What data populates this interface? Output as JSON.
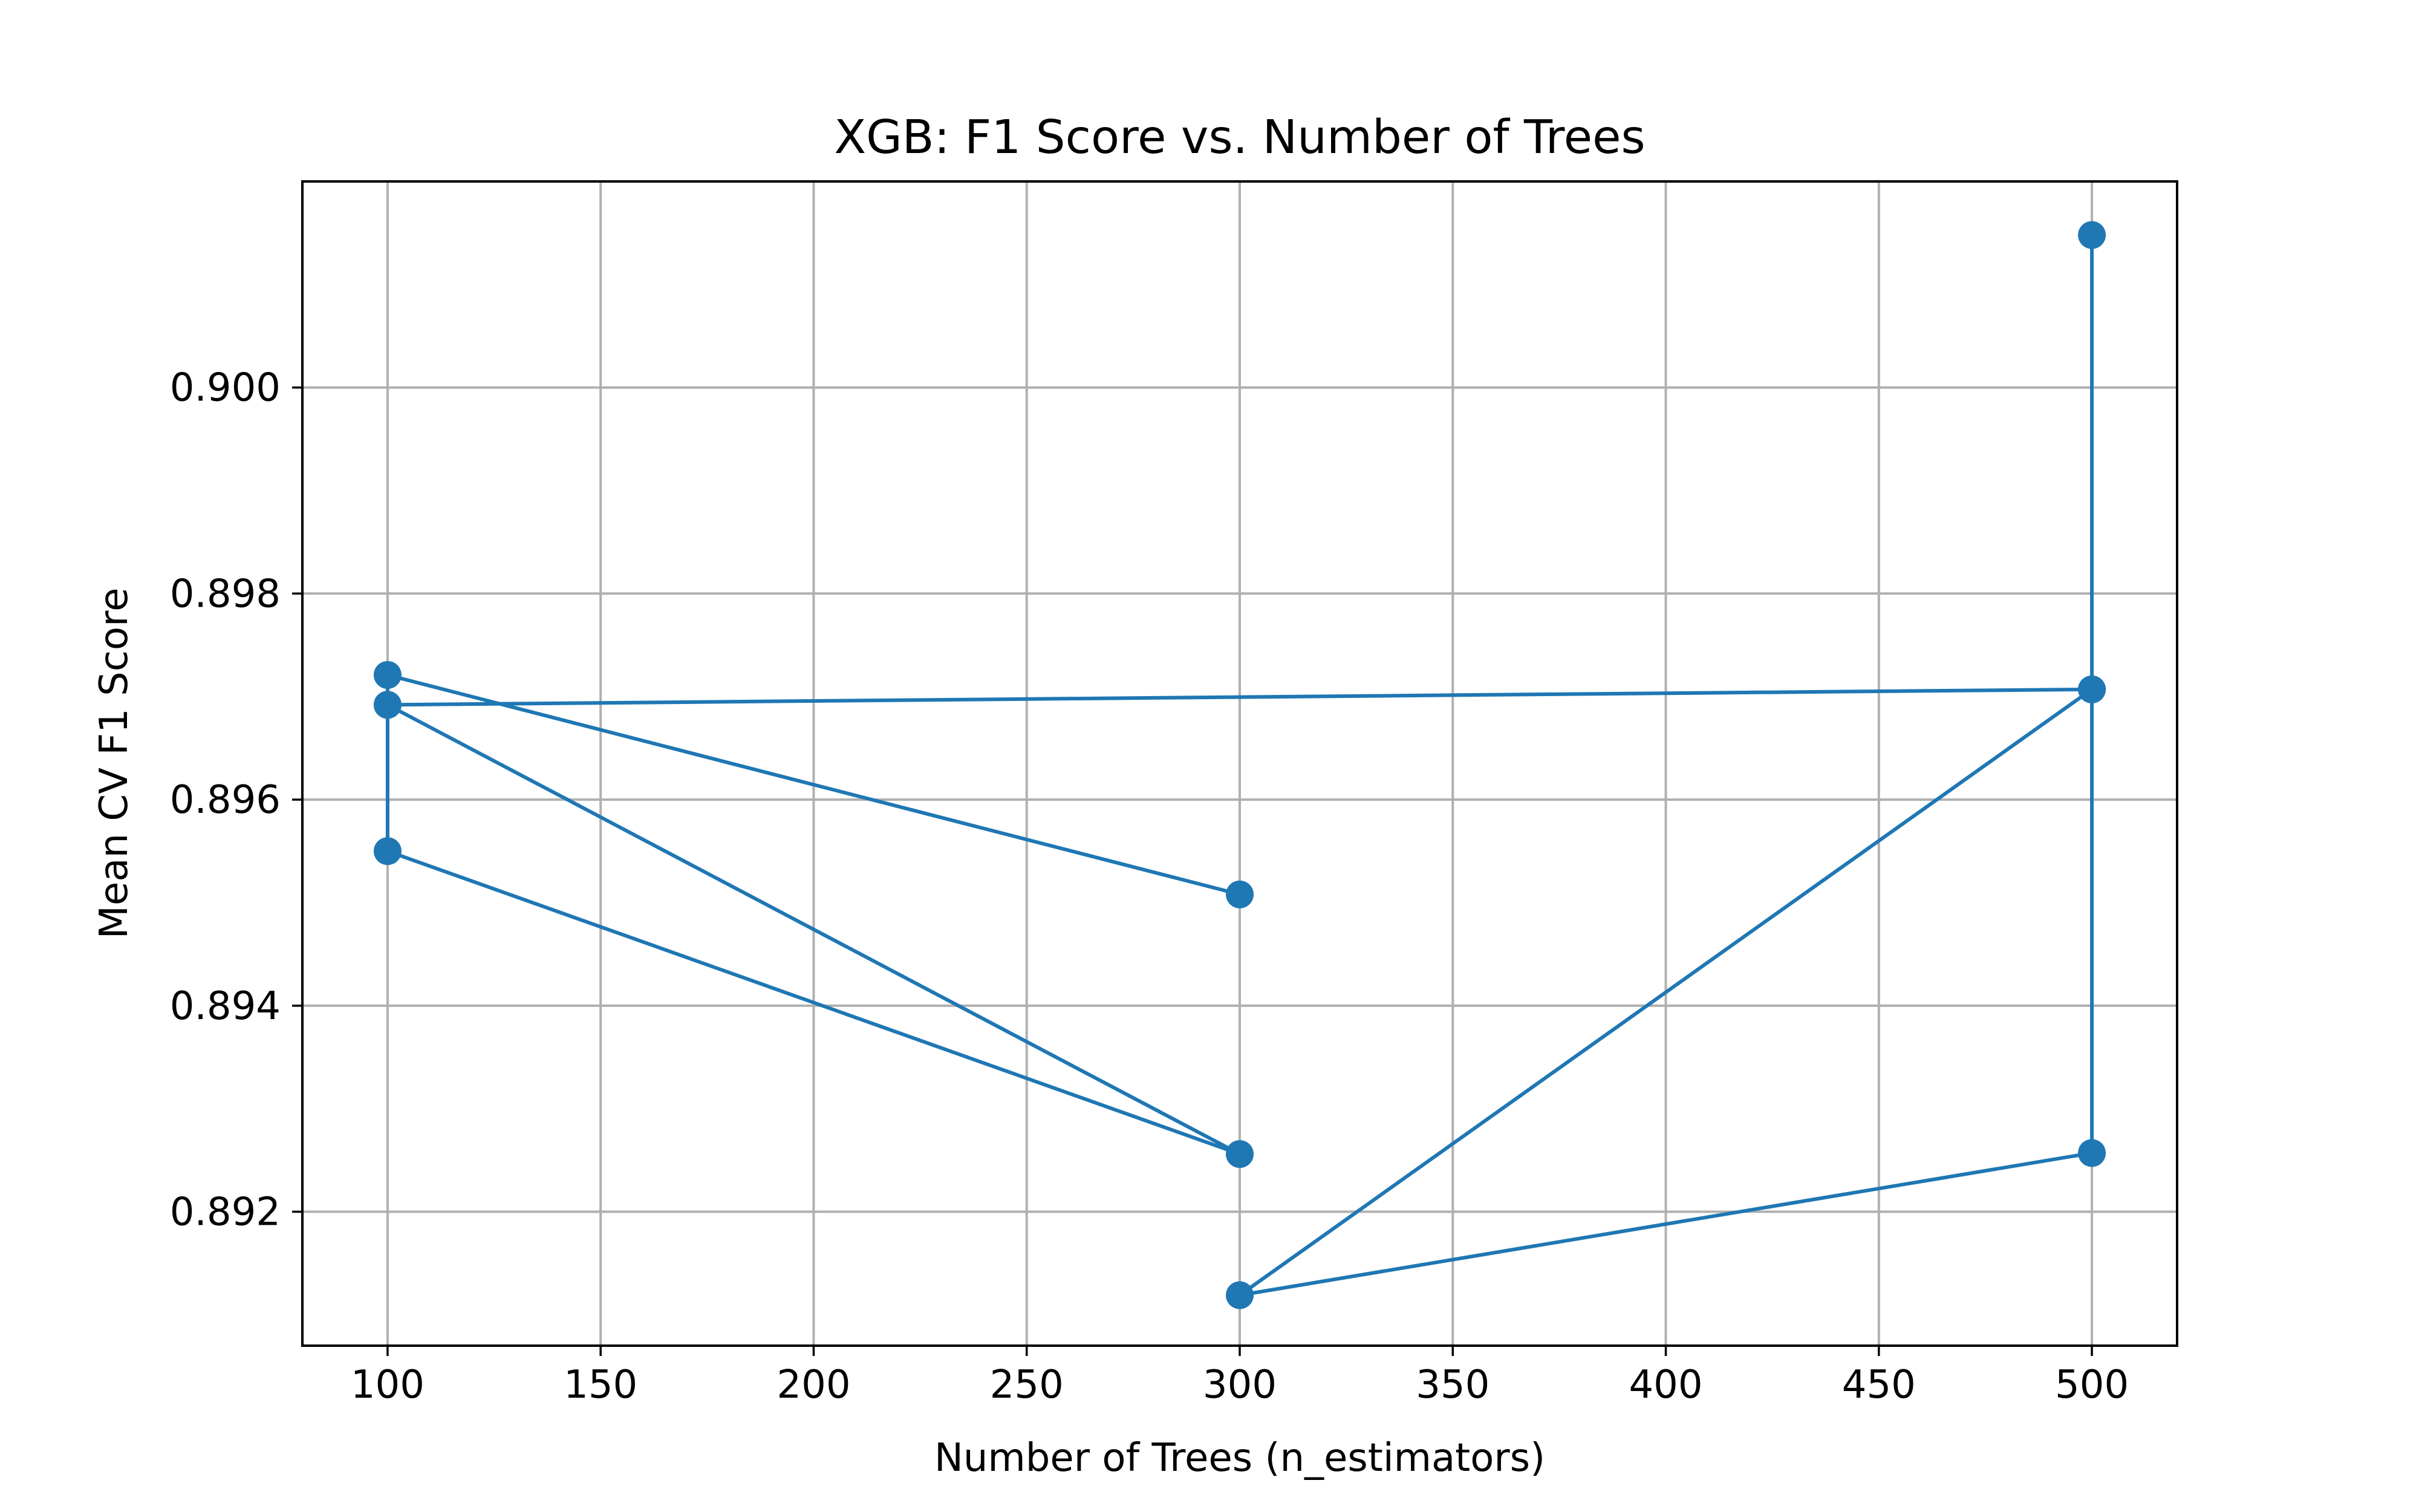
{
  "chart_data": {
    "type": "line",
    "title": "XGB: F1 Score vs. Number of Trees",
    "xlabel": "Number of Trees (n_estimators)",
    "ylabel": "Mean CV F1 Score",
    "xlim": [
      80,
      520
    ],
    "ylim": [
      0.8907,
      0.902
    ],
    "xticks": [
      100,
      150,
      200,
      250,
      300,
      350,
      400,
      450,
      500
    ],
    "xtick_labels": [
      "100",
      "150",
      "200",
      "250",
      "300",
      "350",
      "400",
      "450",
      "500"
    ],
    "yticks": [
      0.892,
      0.894,
      0.896,
      0.898,
      0.9
    ],
    "ytick_labels": [
      "0.892",
      "0.894",
      "0.896",
      "0.898",
      "0.900"
    ],
    "grid": true,
    "series": [
      {
        "color": "#1f77b4",
        "marker": "circle",
        "x": [
          300,
          100,
          100,
          100,
          300,
          100,
          500,
          500,
          500,
          300,
          500
        ],
        "y": [
          0.89508,
          0.89721,
          0.89692,
          0.8955,
          0.89256,
          0.89692,
          0.89707,
          0.90148,
          0.89257,
          0.89119,
          0.89707
        ]
      }
    ]
  }
}
